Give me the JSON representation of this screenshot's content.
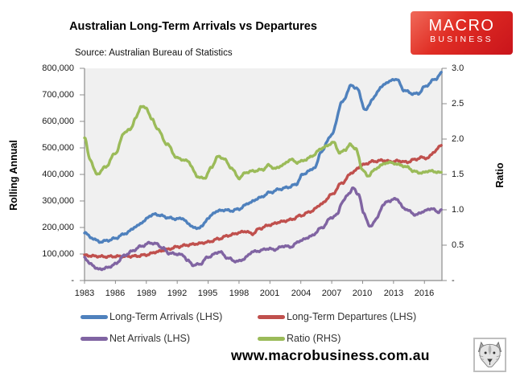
{
  "header": {
    "title": "Australian Long-Term Arrivals vs Departures",
    "source": "Source: Australian Bureau of Statistics",
    "logo": {
      "line1": "MACRO",
      "line2": "BUSINESS"
    }
  },
  "axes": {
    "left": {
      "label": "Rolling Annual",
      "ticks": [
        "800,000",
        "700,000",
        "600,000",
        "500,000",
        "400,000",
        "300,000",
        "200,000",
        "100,000",
        "-"
      ]
    },
    "right": {
      "label": "Ratio",
      "ticks": [
        "3.0",
        "2.5",
        "2.0",
        "1.5",
        "1.0",
        "0.5",
        "-"
      ]
    },
    "x": {
      "ticks": [
        "1983",
        "1986",
        "1989",
        "1992",
        "1995",
        "1998",
        "2001",
        "2004",
        "2007",
        "2010",
        "2013",
        "2016"
      ]
    }
  },
  "legend": [
    {
      "label": "Long-Term Arrivals (LHS)",
      "color": "#4F81BD"
    },
    {
      "label": "Long-Term Departures (LHS)",
      "color": "#C0504D"
    },
    {
      "label": "Net Arrivals (LHS)",
      "color": "#8064A2"
    },
    {
      "label": "Ratio (RHS)",
      "color": "#9BBB59"
    }
  ],
  "footer": {
    "url": "www.macrobusiness.com.au"
  },
  "colors": {
    "arrivals": "#4F81BD",
    "departures": "#C0504D",
    "net": "#8064A2",
    "ratio": "#9BBB59",
    "plot_bg": "#f0f0f0",
    "axis": "#8c8c8c",
    "logo_red": "#d8201d"
  },
  "chart_data": {
    "type": "line",
    "title": "Australian Long-Term Arrivals vs Departures",
    "source": "Source: Australian Bureau of Statistics",
    "x_axis": {
      "range": [
        1983,
        2017.7
      ],
      "tick_labels": [
        1983,
        1986,
        1989,
        1992,
        1995,
        1998,
        2001,
        2004,
        2007,
        2010,
        2013,
        2016
      ]
    },
    "left_axis": {
      "label": "Rolling Annual",
      "range": [
        0,
        800000
      ],
      "tick_step": 100000
    },
    "right_axis": {
      "label": "Ratio",
      "range": [
        0,
        3.0
      ],
      "tick_step": 0.5
    },
    "grid": false,
    "legend_position": "bottom",
    "series": [
      {
        "name": "Long-Term Arrivals (LHS)",
        "axis": "left",
        "color": "#4F81BD",
        "points": [
          [
            1983.0,
            183000
          ],
          [
            1983.6,
            162000
          ],
          [
            1984.5,
            146000
          ],
          [
            1985.4,
            152000
          ],
          [
            1986.0,
            160000
          ],
          [
            1987.0,
            178000
          ],
          [
            1988.0,
            203000
          ],
          [
            1988.7,
            222000
          ],
          [
            1989.4,
            245000
          ],
          [
            1989.9,
            250000
          ],
          [
            1990.5,
            244000
          ],
          [
            1991.2,
            236000
          ],
          [
            1992.0,
            232000
          ],
          [
            1992.5,
            235000
          ],
          [
            1993.1,
            213000
          ],
          [
            1993.8,
            196000
          ],
          [
            1994.4,
            204000
          ],
          [
            1995.0,
            236000
          ],
          [
            1995.8,
            261000
          ],
          [
            1996.6,
            266000
          ],
          [
            1997.3,
            263000
          ],
          [
            1998.0,
            270000
          ],
          [
            1999.0,
            293000
          ],
          [
            2000.0,
            312000
          ],
          [
            2001.0,
            332000
          ],
          [
            2002.0,
            345000
          ],
          [
            2002.8,
            352000
          ],
          [
            2003.5,
            362000
          ],
          [
            2004.2,
            400000
          ],
          [
            2004.8,
            413000
          ],
          [
            2005.4,
            428000
          ],
          [
            2006.0,
            488000
          ],
          [
            2007.0,
            550000
          ],
          [
            2008.0,
            672000
          ],
          [
            2008.9,
            735000
          ],
          [
            2009.4,
            726000
          ],
          [
            2010.3,
            642000
          ],
          [
            2011.0,
            686000
          ],
          [
            2011.8,
            730000
          ],
          [
            2012.5,
            750000
          ],
          [
            2013.3,
            760000
          ],
          [
            2014.0,
            718000
          ],
          [
            2014.8,
            705000
          ],
          [
            2015.4,
            704000
          ],
          [
            2016.0,
            730000
          ],
          [
            2017.0,
            758000
          ],
          [
            2017.7,
            782000
          ]
        ]
      },
      {
        "name": "Long-Term Departures (LHS)",
        "axis": "left",
        "color": "#C0504D",
        "points": [
          [
            1983.0,
            95000
          ],
          [
            1984.0,
            92000
          ],
          [
            1985.0,
            90000
          ],
          [
            1986.0,
            91000
          ],
          [
            1987.0,
            91000
          ],
          [
            1988.0,
            92000
          ],
          [
            1989.0,
            97000
          ],
          [
            1990.0,
            108000
          ],
          [
            1991.0,
            117000
          ],
          [
            1992.0,
            127000
          ],
          [
            1993.0,
            134000
          ],
          [
            1994.0,
            139000
          ],
          [
            1995.0,
            145000
          ],
          [
            1996.0,
            157000
          ],
          [
            1997.0,
            170000
          ],
          [
            1998.0,
            180000
          ],
          [
            1998.6,
            186000
          ],
          [
            1999.3,
            176000
          ],
          [
            2000.0,
            196000
          ],
          [
            2001.0,
            210000
          ],
          [
            2002.0,
            221000
          ],
          [
            2003.0,
            229000
          ],
          [
            2004.0,
            245000
          ],
          [
            2005.0,
            261000
          ],
          [
            2006.0,
            288000
          ],
          [
            2007.0,
            324000
          ],
          [
            2008.0,
            368000
          ],
          [
            2009.0,
            408000
          ],
          [
            2010.0,
            436000
          ],
          [
            2011.0,
            449000
          ],
          [
            2012.0,
            453000
          ],
          [
            2012.8,
            448000
          ],
          [
            2013.5,
            451000
          ],
          [
            2014.3,
            446000
          ],
          [
            2015.0,
            456000
          ],
          [
            2015.8,
            464000
          ],
          [
            2016.3,
            461000
          ],
          [
            2017.0,
            487000
          ],
          [
            2017.7,
            513000
          ]
        ]
      },
      {
        "name": "Net Arrivals (LHS)",
        "axis": "left",
        "color": "#8064A2",
        "points": [
          [
            1983.0,
            87000
          ],
          [
            1983.6,
            61000
          ],
          [
            1984.4,
            42000
          ],
          [
            1985.2,
            48000
          ],
          [
            1986.0,
            62000
          ],
          [
            1986.8,
            93000
          ],
          [
            1987.6,
            110000
          ],
          [
            1988.4,
            128000
          ],
          [
            1989.4,
            142000
          ],
          [
            1990.0,
            138000
          ],
          [
            1990.6,
            122000
          ],
          [
            1991.2,
            103000
          ],
          [
            1992.0,
            100000
          ],
          [
            1992.6,
            95000
          ],
          [
            1993.0,
            75000
          ],
          [
            1993.6,
            58000
          ],
          [
            1994.2,
            62000
          ],
          [
            1995.0,
            89000
          ],
          [
            1996.1,
            108000
          ],
          [
            1997.0,
            83000
          ],
          [
            1997.8,
            71000
          ],
          [
            1998.4,
            80000
          ],
          [
            1999.3,
            108000
          ],
          [
            2000.0,
            112000
          ],
          [
            2000.7,
            120000
          ],
          [
            2001.5,
            117000
          ],
          [
            2002.3,
            130000
          ],
          [
            2003.0,
            127000
          ],
          [
            2004.0,
            151000
          ],
          [
            2005.0,
            167000
          ],
          [
            2006.0,
            198000
          ],
          [
            2007.0,
            238000
          ],
          [
            2007.5,
            247000
          ],
          [
            2008.0,
            295000
          ],
          [
            2008.7,
            330000
          ],
          [
            2009.1,
            348000
          ],
          [
            2009.6,
            325000
          ],
          [
            2010.1,
            255000
          ],
          [
            2010.7,
            202000
          ],
          [
            2011.3,
            230000
          ],
          [
            2012.0,
            285000
          ],
          [
            2012.5,
            300000
          ],
          [
            2013.3,
            308000
          ],
          [
            2014.0,
            272000
          ],
          [
            2015.2,
            248000
          ],
          [
            2016.0,
            262000
          ],
          [
            2016.7,
            272000
          ],
          [
            2017.3,
            258000
          ],
          [
            2017.7,
            268000
          ]
        ]
      },
      {
        "name": "Ratio (RHS)",
        "axis": "right",
        "color": "#9BBB59",
        "points": [
          [
            1983.0,
            2.03
          ],
          [
            1983.5,
            1.72
          ],
          [
            1984.2,
            1.5
          ],
          [
            1985.0,
            1.6
          ],
          [
            1986.0,
            1.8
          ],
          [
            1986.9,
            2.1
          ],
          [
            1987.4,
            2.13
          ],
          [
            1988.0,
            2.3
          ],
          [
            1988.5,
            2.47
          ],
          [
            1989.0,
            2.43
          ],
          [
            1989.6,
            2.27
          ],
          [
            1990.0,
            2.16
          ],
          [
            1991.0,
            1.93
          ],
          [
            1992.0,
            1.73
          ],
          [
            1993.0,
            1.69
          ],
          [
            1994.0,
            1.47
          ],
          [
            1994.6,
            1.44
          ],
          [
            1995.3,
            1.59
          ],
          [
            1995.9,
            1.75
          ],
          [
            1996.5,
            1.73
          ],
          [
            1997.2,
            1.6
          ],
          [
            1998.0,
            1.45
          ],
          [
            1998.7,
            1.53
          ],
          [
            1999.5,
            1.55
          ],
          [
            2000.3,
            1.57
          ],
          [
            2000.9,
            1.63
          ],
          [
            2001.5,
            1.58
          ],
          [
            2002.2,
            1.63
          ],
          [
            2003.0,
            1.71
          ],
          [
            2003.7,
            1.67
          ],
          [
            2004.5,
            1.71
          ],
          [
            2005.2,
            1.77
          ],
          [
            2006.0,
            1.87
          ],
          [
            2007.2,
            1.95
          ],
          [
            2007.8,
            1.8
          ],
          [
            2008.3,
            1.85
          ],
          [
            2008.8,
            1.92
          ],
          [
            2009.3,
            1.87
          ],
          [
            2010.0,
            1.57
          ],
          [
            2010.5,
            1.47
          ],
          [
            2011.0,
            1.55
          ],
          [
            2011.8,
            1.63
          ],
          [
            2012.4,
            1.67
          ],
          [
            2013.0,
            1.66
          ],
          [
            2013.7,
            1.63
          ],
          [
            2014.4,
            1.6
          ],
          [
            2015.0,
            1.54
          ],
          [
            2015.8,
            1.52
          ],
          [
            2016.4,
            1.55
          ],
          [
            2017.0,
            1.54
          ],
          [
            2017.7,
            1.52
          ]
        ]
      }
    ]
  }
}
